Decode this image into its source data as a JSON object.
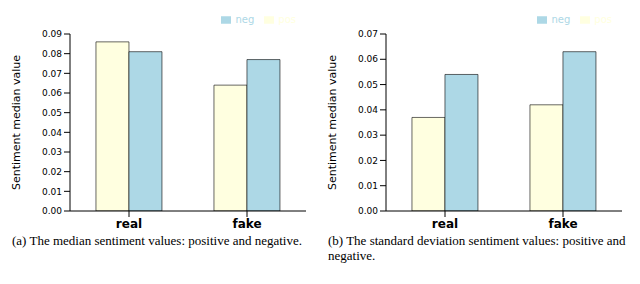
{
  "chart_data": [
    {
      "type": "bar",
      "caption": "(a) The median sentiment values: positive and negative.",
      "ylabel": "Sentiment median value",
      "categories": [
        "real",
        "fake"
      ],
      "series": [
        {
          "name": "pos",
          "color": "#ffffe0",
          "values": [
            0.086,
            0.064
          ]
        },
        {
          "name": "neg",
          "color": "#add8e6",
          "values": [
            0.081,
            0.077
          ]
        }
      ],
      "ylim": [
        0,
        0.09
      ],
      "yticks": [
        {
          "value": 0,
          "label": "0.00"
        },
        {
          "value": 0.01,
          "label": "0.01"
        },
        {
          "value": 0.02,
          "label": "0.02"
        },
        {
          "value": 0.03,
          "label": "0.03"
        },
        {
          "value": 0.04,
          "label": "0.04"
        },
        {
          "value": 0.05,
          "label": "0.05"
        },
        {
          "value": 0.06,
          "label": "0.06"
        },
        {
          "value": 0.07,
          "label": "0.07"
        },
        {
          "value": 0.08,
          "label": "0.08"
        },
        {
          "value": 0.09,
          "label": "0.09"
        }
      ],
      "legend": "upper right",
      "grid": false
    },
    {
      "type": "bar",
      "caption": "(b) The standard deviation sentiment values: positive and negative.",
      "ylabel": "Sentiment median value",
      "categories": [
        "real",
        "fake"
      ],
      "series": [
        {
          "name": "pos",
          "color": "#ffffe0",
          "values": [
            0.037,
            0.042
          ]
        },
        {
          "name": "neg",
          "color": "#add8e6",
          "values": [
            0.054,
            0.063
          ]
        }
      ],
      "ylim": [
        0,
        0.07
      ],
      "yticks": [
        {
          "value": 0,
          "label": "0.00"
        },
        {
          "value": 0.01,
          "label": "0.01"
        },
        {
          "value": 0.02,
          "label": "0.02"
        },
        {
          "value": 0.03,
          "label": "0.03"
        },
        {
          "value": 0.04,
          "label": "0.04"
        },
        {
          "value": 0.05,
          "label": "0.05"
        },
        {
          "value": 0.06,
          "label": "0.06"
        },
        {
          "value": 0.07,
          "label": "0.07"
        }
      ],
      "legend": "upper right",
      "grid": false
    }
  ]
}
